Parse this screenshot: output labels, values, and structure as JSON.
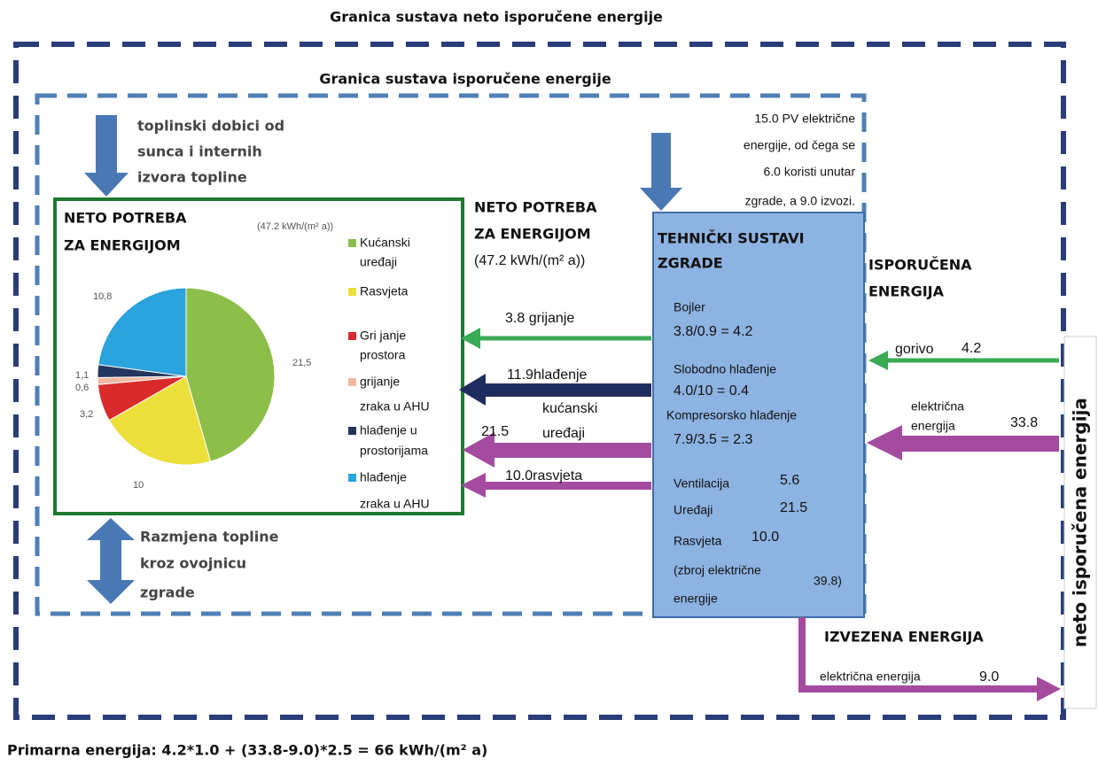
{
  "outer_title": "Granica sustava neto isporučene energije",
  "inner_title": "Granica sustava isporučene energije",
  "solar_gains": [
    "toplinski dobici od",
    "sunca i internih",
    "izvora topline"
  ],
  "net_demand_box": {
    "title": [
      "NETO POTREBA",
      "ZA ENERGIJOM"
    ],
    "subtitle": "(47.2 kWh/(m² a))"
  },
  "pie": {
    "type": "pie",
    "values": [
      21.5,
      10,
      3.2,
      0.6,
      1.1,
      10.8
    ],
    "value_labels": [
      "21,5",
      "10",
      "3,2",
      "0,6",
      "1,1",
      "10,8"
    ],
    "colors": [
      "#8dbe4a",
      "#ecdf3c",
      "#d92b2b",
      "#f0b8a0",
      "#23365e",
      "#2ba3dc"
    ],
    "legend": [
      [
        "Kućanski",
        "uređaji"
      ],
      [
        "Rasvjeta"
      ],
      [
        "Gri janje",
        "prostora"
      ],
      [
        "grijanje",
        "zraka u AHU"
      ],
      [
        "hlađenje u",
        "prostorijama"
      ],
      [
        "hlađenje",
        "zraka u AHU"
      ]
    ]
  },
  "net_demand": {
    "title": [
      "NETO POTREBA",
      "ZA ENERGIJOM"
    ],
    "value": "(47.2 kWh/(m² a))"
  },
  "pv": [
    "15.0 PV električne",
    "energije, od čega se",
    "6.0 koristi unutar",
    "zgrade, a 9.0 izvozi."
  ],
  "tech": {
    "title": [
      "TEHNIČKI SUSTAVI",
      "ZGRADE"
    ],
    "boiler": [
      "Bojler",
      "3.8/0.9 = 4.2"
    ],
    "free_cooling": [
      "Slobodno hlađenje",
      "4.0/10 = 0.4"
    ],
    "compressor": [
      "Kompresorsko hlađenje",
      "7.9/3.5 = 2.3"
    ],
    "ventilation": [
      "Ventilacija",
      "5.6"
    ],
    "appliances": [
      "Uređaji",
      "21.5"
    ],
    "lighting": [
      "Rasvjeta",
      "10.0"
    ],
    "total": [
      "(zbroj električne",
      "39.8)",
      "energije"
    ]
  },
  "flows": {
    "heating": "3.8 grijanje",
    "cooling": "11.9hlađenje",
    "appliances": [
      "kućanski",
      "21.5",
      "uređaji"
    ],
    "lighting": "10.0rasvjeta"
  },
  "delivered": {
    "title": [
      "ISPORUČENA",
      "ENERGIJA"
    ],
    "fuel": [
      "gorivo",
      "4.2"
    ],
    "electricity": [
      "električna",
      "energija",
      "33.8"
    ]
  },
  "net_delivered": "neto isporučena energija",
  "exported": {
    "title": "IZVEZENA ENERGIJA",
    "label": "električna energija",
    "value": "9.0"
  },
  "envelope": [
    "Razmjena topline",
    "kroz ovojnicu",
    "zgrade"
  ],
  "primary": "Primarna energija:  4.2*1.0 + (33.8-9.0)*2.5 = 66 kWh/(m² a)"
}
